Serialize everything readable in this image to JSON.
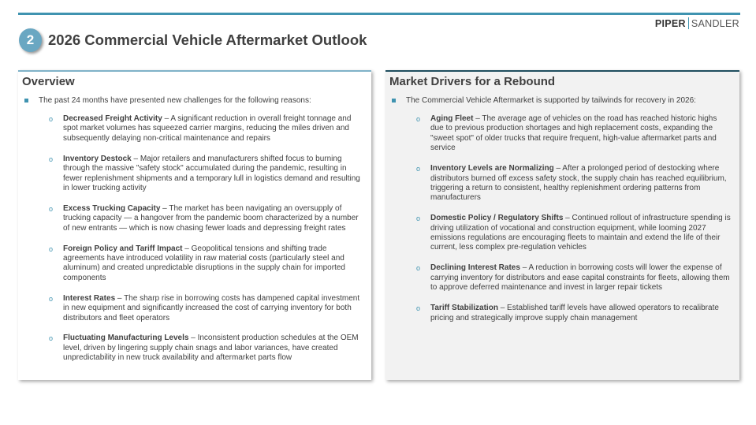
{
  "header": {
    "logo_left": "PIPER",
    "logo_right": "SANDLER",
    "section_number": "2",
    "title": "2026 Commercial Vehicle Aftermarket Outlook"
  },
  "overview": {
    "heading": "Overview",
    "lead": "The past 24 months have presented new challenges for the following reasons:",
    "items": [
      {
        "title": "Decreased Freight Activity",
        "text": " –  A significant reduction in overall freight tonnage and spot market volumes has squeezed carrier margins, reducing the miles driven and subsequently delaying non-critical maintenance and repairs"
      },
      {
        "title": "Inventory Destock",
        "text": " –  Major retailers and manufacturers shifted focus to burning through the massive \"safety stock\" accumulated during the pandemic, resulting in fewer replenishment shipments and a temporary lull in logistics demand and resulting in lower trucking activity"
      },
      {
        "title": "Excess Trucking Capacity",
        "text": " – The market has been navigating an oversupply of trucking capacity — a hangover from the pandemic boom characterized by a number of new entrants — which is now chasing fewer loads and depressing freight rates"
      },
      {
        "title": "Foreign Policy and Tariff Impact",
        "text": " – Geopolitical tensions and shifting trade agreements have introduced volatility in raw material costs (particularly steel and aluminum) and created unpredictable disruptions in the supply chain for imported components"
      },
      {
        "title": "Interest Rates",
        "text": " – The sharp rise in borrowing costs has dampened capital investment in new equipment and significantly increased the cost of carrying inventory for both distributors and fleet operators"
      },
      {
        "title": "Fluctuating Manufacturing Levels",
        "text": " – Inconsistent production schedules at the OEM level, driven by lingering supply chain snags and labor variances, have created unpredictability in new truck availability and aftermarket parts flow"
      }
    ]
  },
  "drivers": {
    "heading": "Market Drivers for a Rebound",
    "lead": "The Commercial Vehicle Aftermarket is supported by tailwinds for recovery in 2026:",
    "items": [
      {
        "title": "Aging Fleet",
        "text": " – The average age of vehicles on the road has reached historic highs due to previous production shortages and high replacement costs, expanding the \"sweet spot\" of older trucks that require frequent, high-value aftermarket parts and service"
      },
      {
        "title": "Inventory Levels are Normalizing",
        "text": " – After a prolonged period of destocking where distributors burned off excess safety stock, the supply chain has reached equilibrium, triggering a return to consistent, healthy replenishment ordering patterns from manufacturers"
      },
      {
        "title": "Domestic Policy / Regulatory Shifts",
        "text": " – Continued rollout of infrastructure spending is driving utilization of vocational and construction equipment, while looming 2027 emissions regulations are encouraging fleets to maintain and extend the life of their current, less complex pre-regulation vehicles"
      },
      {
        "title": "Declining Interest Rates",
        "text": " – A reduction in borrowing costs will lower the expense of carrying inventory for distributors and ease capital constraints for fleets, allowing them to approve deferred maintenance and invest in larger repair tickets"
      },
      {
        "title": "Tariff Stabilization",
        "text": " – Established tariff levels have allowed operators to recalibrate pricing and strategically improve supply chain management"
      }
    ]
  },
  "colors": {
    "accent": "#3f93b0",
    "left_border": "#7fb2c8",
    "right_border": "#1f4e5f",
    "panel_bg": "#f2f2f2"
  }
}
